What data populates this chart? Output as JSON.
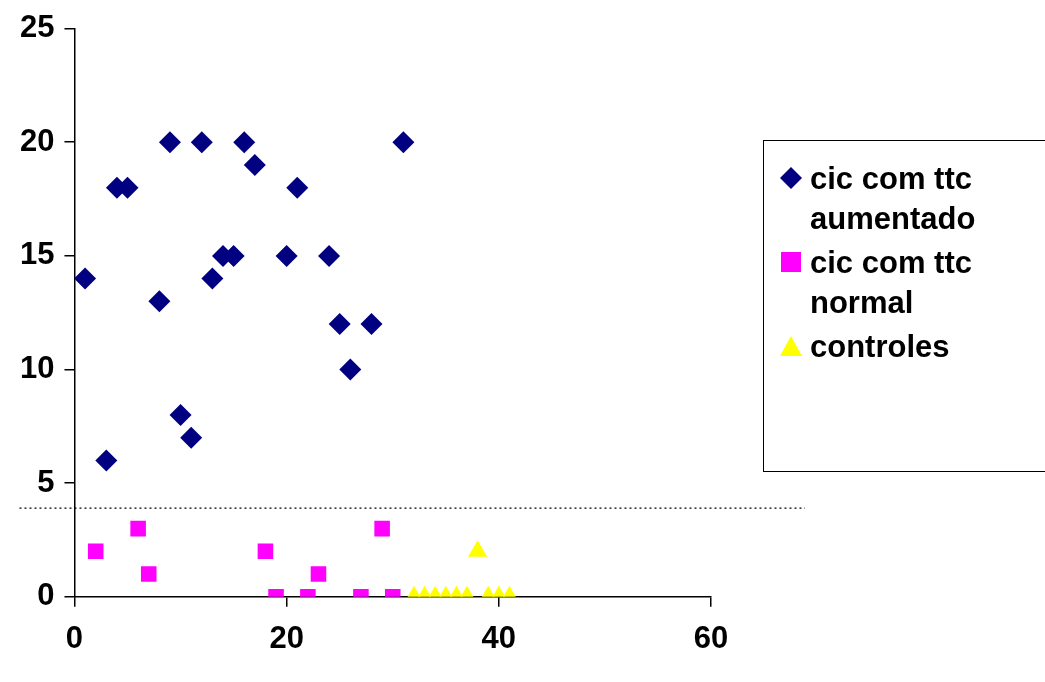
{
  "chart_data": {
    "type": "scatter",
    "xlim": [
      0,
      60
    ],
    "xticks": [
      0,
      20,
      40,
      60
    ],
    "ylim": [
      0,
      25
    ],
    "yticks": [
      0,
      5,
      10,
      15,
      20,
      25
    ],
    "grid": false,
    "legend": "right",
    "series": [
      {
        "name": "cic com ttc aumentado",
        "color": "#000080",
        "marker": "diamond",
        "x": [
          1,
          3,
          4,
          5,
          8,
          9,
          10,
          11,
          12,
          13,
          14,
          15,
          16,
          17,
          20,
          21,
          24,
          25,
          26,
          28,
          31
        ],
        "values": [
          14,
          6,
          18,
          18,
          13,
          20,
          8,
          7,
          20,
          14,
          15,
          15,
          20,
          19,
          15,
          18,
          15,
          12,
          10,
          12,
          20
        ]
      },
      {
        "name": "cic com ttc normal",
        "color": "#ff00ff",
        "marker": "square",
        "x": [
          2,
          6,
          7,
          18,
          19,
          22,
          23,
          27,
          29,
          30
        ],
        "values": [
          2,
          3,
          1,
          2,
          0,
          0,
          1,
          0,
          3,
          0
        ]
      },
      {
        "name": "controles",
        "color": "#ffff00",
        "marker": "triangle",
        "x": [
          32,
          33,
          34,
          35,
          36,
          37,
          38,
          39,
          40,
          41
        ],
        "values": [
          0,
          0,
          0,
          0,
          0,
          0,
          2,
          0,
          0,
          0
        ]
      }
    ],
    "ref_lines": [
      {
        "axis": "y",
        "value": 3.9,
        "color": "#000000",
        "line_style": "dotted"
      }
    ]
  }
}
